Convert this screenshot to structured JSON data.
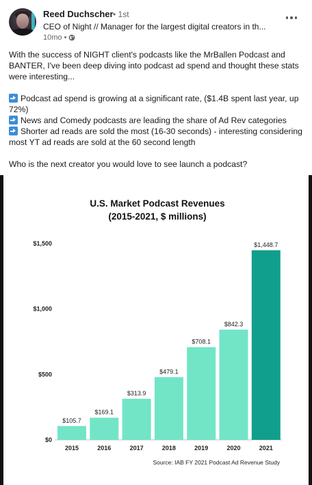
{
  "author": {
    "name": "Reed Duchscher",
    "degree": "• 1st",
    "headline": "CEO of Night // Manager for the largest digital creators in th...",
    "time": "10mo •"
  },
  "post": {
    "intro": "With the success of NIGHT client's podcasts like the MrBallen Podcast and BANTER, I've been deep diving into podcast ad spend and thought these stats were interesting...",
    "bullets": [
      "Podcast ad spend is growing at a significant rate, ($1.4B spent last year, up 72%)",
      "News and Comedy podcasts are leading the share of Ad Rev categories",
      "Shorter ad reads are sold the most (16-30 seconds) - interesting considering most YT ad reads are sold at the 60 second length"
    ],
    "question": "Who is the next creator you would love to see launch a podcast?"
  },
  "icons": {
    "more": "more-horizontal-icon",
    "visibility": "globe-icon",
    "bullet": "right-arrow-emoji-icon"
  },
  "chart_data": {
    "type": "bar",
    "title": "U.S. Market Podcast Revenues",
    "subtitle": "(2015-2021, $ millions)",
    "categories": [
      "2015",
      "2016",
      "2017",
      "2018",
      "2019",
      "2020",
      "2021"
    ],
    "values": [
      105.7,
      169.1,
      313.9,
      479.1,
      708.1,
      842.3,
      1448.7
    ],
    "data_labels": [
      "$105.7",
      "$169.1",
      "$313.9",
      "$479.1",
      "$708.1",
      "$842.3",
      "$1,448.7"
    ],
    "y_ticks": [
      0,
      500,
      1000,
      1500
    ],
    "y_tick_labels": [
      "$0",
      "$500",
      "$1,000",
      "$1,500"
    ],
    "ylim": [
      0,
      1500
    ],
    "xlabel": "",
    "ylabel": "",
    "grid": false,
    "source": "Source: IAB FY 2021 Podcast Ad Revenue Study",
    "colors": {
      "bar": "#72e5c7",
      "highlight": "#119f8d"
    }
  }
}
